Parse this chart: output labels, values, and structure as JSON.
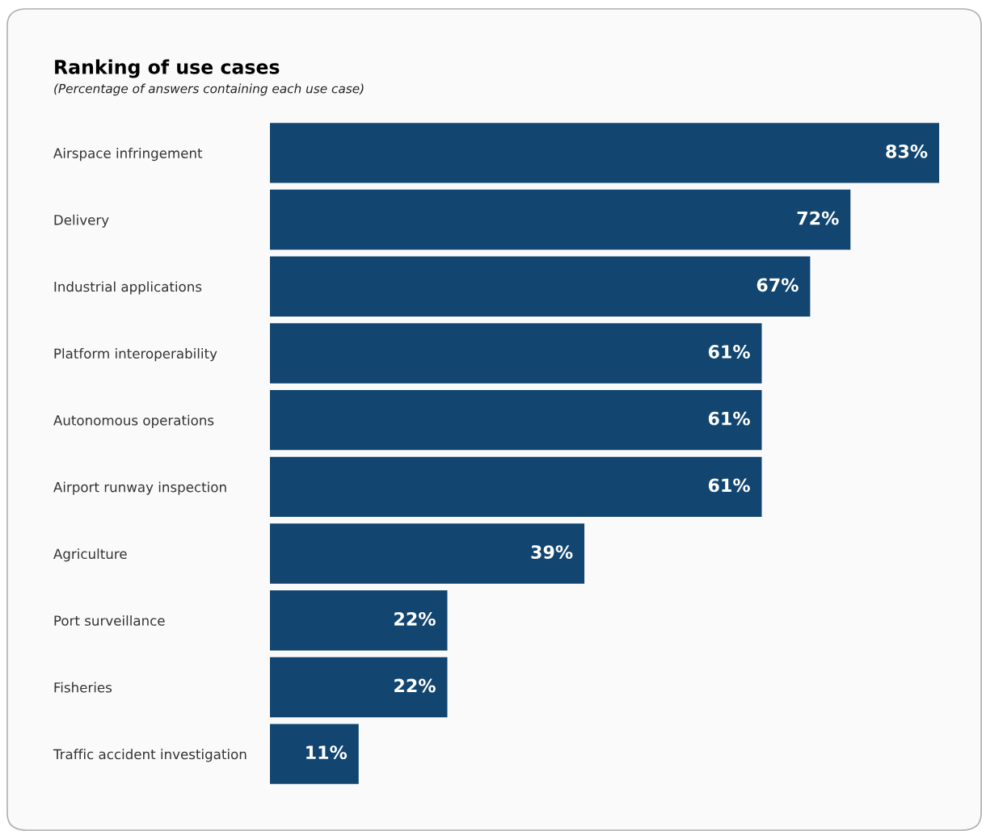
{
  "chart_data": {
    "type": "bar",
    "orientation": "horizontal",
    "title": "Ranking of use cases",
    "subtitle": "(Percentage of answers containing each use case)",
    "categories": [
      "Airspace infringement",
      "Delivery",
      "Industrial applications",
      "Platform interoperability",
      "Autonomous operations",
      "Airport runway inspection",
      "Agriculture",
      "Port surveillance",
      "Fisheries",
      "Traffic accident investigation"
    ],
    "values": [
      83,
      72,
      67,
      61,
      61,
      61,
      39,
      22,
      22,
      11
    ],
    "value_labels": [
      "83%",
      "72%",
      "67%",
      "61%",
      "61%",
      "61%",
      "39%",
      "22%",
      "22%",
      "11%"
    ],
    "color": "#12456f",
    "xlim": [
      0,
      83
    ],
    "tick_labels": "y",
    "grid": false,
    "legend": false
  }
}
